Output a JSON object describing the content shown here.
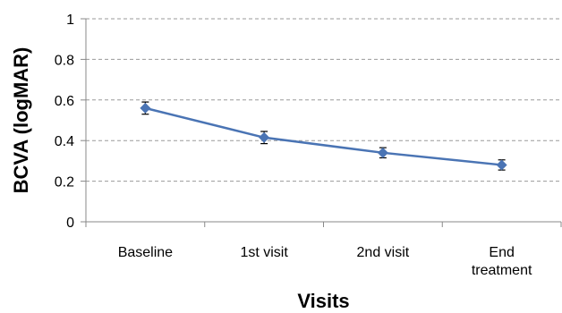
{
  "chart_data": {
    "type": "line",
    "title": "",
    "xlabel": "Visits",
    "ylabel": "BCVA (logMAR)",
    "categories": [
      [
        "Baseline"
      ],
      [
        "1st visit"
      ],
      [
        "2nd visit"
      ],
      [
        "End",
        "treatment"
      ]
    ],
    "series": [
      {
        "values": [
          0.56,
          0.415,
          0.34,
          0.28
        ],
        "error": [
          0.03,
          0.03,
          0.025,
          0.025
        ]
      }
    ],
    "ylim": [
      0,
      1
    ],
    "yticks": [
      "0",
      "0.2",
      "0.4",
      "0.6",
      "0.8",
      "1"
    ],
    "grid": true,
    "legend": "none",
    "colors": {
      "series": "#4a74b4",
      "grid": "#999999",
      "axis": "#888888",
      "error_bar": "#000000"
    }
  }
}
